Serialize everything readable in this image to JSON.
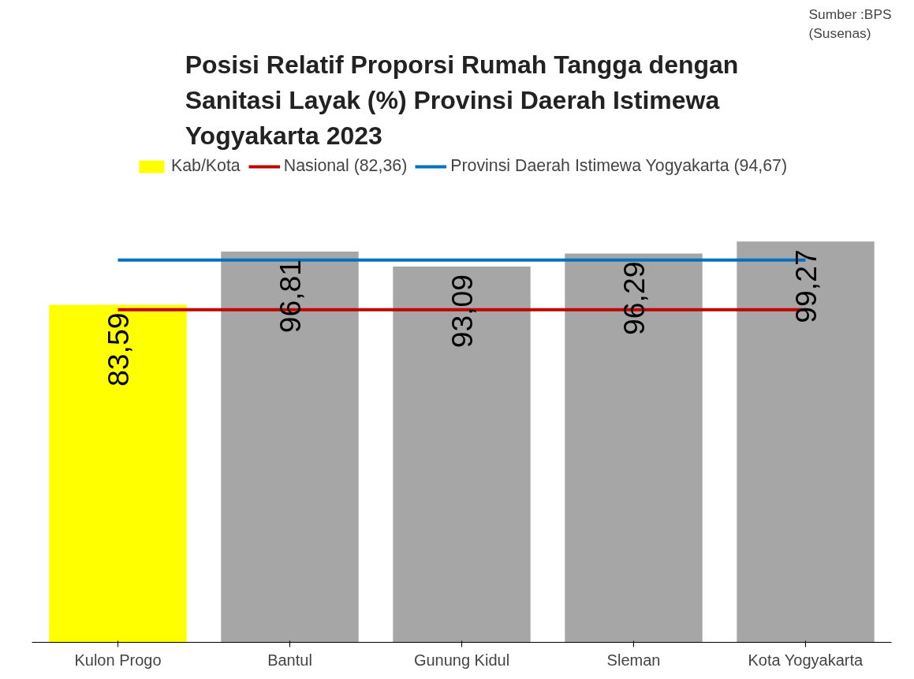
{
  "chart_data": {
    "type": "bar",
    "title": "Posisi Relatif Proporsi Rumah Tangga dengan\nSanitasi Layak (%) Provinsi Daerah Istimewa\nYogyakarta 2023",
    "categories": [
      "Kulon Progo",
      "Bantul",
      "Gunung Kidul",
      "Sleman",
      "Kota Yogyakarta"
    ],
    "series": [
      {
        "name": "Kab/Kota",
        "values": [
          83.59,
          96.81,
          93.09,
          96.29,
          99.27
        ],
        "colors": [
          "#ffff00",
          "#a6a6a6",
          "#a6a6a6",
          "#a6a6a6",
          "#a6a6a6"
        ],
        "value_labels": [
          "83,59",
          "96,81",
          "93,09",
          "96,29",
          "99,27"
        ]
      }
    ],
    "tick_labels": "x",
    "grid": false,
    "legend": "top",
    "ref_lines": [
      {
        "axis": "y",
        "value": 82.36,
        "label": "Nasional (82,36)",
        "color": "#c00000"
      },
      {
        "axis": "y",
        "value": 94.67,
        "label": "Provinsi Daerah Istimewa Yogyakarta (94,67)",
        "color": "#0070c0"
      }
    ],
    "annotations": [
      "Sumber :BPS\n(Susenas)"
    ]
  }
}
